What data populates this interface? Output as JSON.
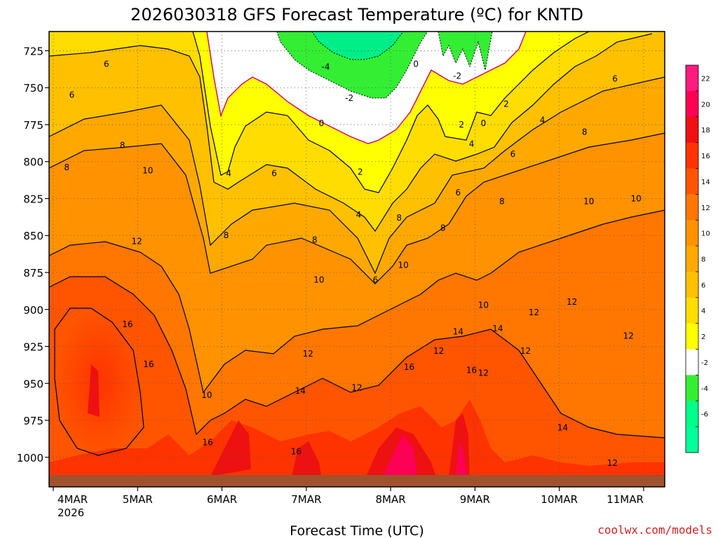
{
  "chart_data": {
    "type": "heatmap",
    "title": "2026030318 GFS Forecast Temperature (ºC) for KNTD",
    "xlabel": "Forecast Time (UTC)",
    "ylabel": "",
    "credit": "coolwx.com/models",
    "x_ticks": [
      "4MAR",
      "5MAR",
      "6MAR",
      "7MAR",
      "8MAR",
      "9MAR",
      "10MAR",
      "11MAR"
    ],
    "x_tick_sub": "2026",
    "y_ticks": [
      725,
      750,
      775,
      800,
      825,
      850,
      875,
      900,
      925,
      950,
      975,
      1000
    ],
    "ylim": [
      1020,
      712
    ],
    "xlim_days": [
      -0.05,
      7.25
    ],
    "colorbar": {
      "labels": [
        22,
        20,
        18,
        16,
        14,
        12,
        10,
        8,
        6,
        4,
        2,
        -2,
        -4,
        -6
      ],
      "colors": [
        "#ff1a80",
        "#ff0055",
        "#ee1111",
        "#ff3300",
        "#ff5500",
        "#ff7700",
        "#ff9200",
        "#ffa900",
        "#ffc000",
        "#ffdd00",
        "#ffff00",
        "#ffffff",
        "#33ee33",
        "#00ff88",
        "#00ff99"
      ]
    },
    "contour_labels": [
      {
        "v": "6",
        "d": 0.63,
        "p": 734
      },
      {
        "v": "6",
        "d": 0.22,
        "p": 755
      },
      {
        "v": "8",
        "d": 0.82,
        "p": 789
      },
      {
        "v": "8",
        "d": 0.16,
        "p": 804
      },
      {
        "v": "10",
        "d": 1.12,
        "p": 806
      },
      {
        "v": "4",
        "d": 2.08,
        "p": 808
      },
      {
        "v": "6",
        "d": 2.62,
        "p": 808
      },
      {
        "v": "8",
        "d": 2.05,
        "p": 850
      },
      {
        "v": "12",
        "d": 0.99,
        "p": 854
      },
      {
        "v": "8",
        "d": 3.1,
        "p": 853
      },
      {
        "v": "10",
        "d": 3.15,
        "p": 880
      },
      {
        "v": "16",
        "d": 0.88,
        "p": 910
      },
      {
        "v": "16",
        "d": 1.13,
        "p": 937
      },
      {
        "v": "12",
        "d": 3.02,
        "p": 930
      },
      {
        "v": "10",
        "d": 1.82,
        "p": 958
      },
      {
        "v": "14",
        "d": 2.93,
        "p": 955
      },
      {
        "v": "12",
        "d": 3.6,
        "p": 953
      },
      {
        "v": "16",
        "d": 1.83,
        "p": 990
      },
      {
        "v": "16",
        "d": 2.88,
        "p": 996
      },
      {
        "v": "0",
        "d": 3.18,
        "p": 774
      },
      {
        "v": "-4",
        "d": 3.23,
        "p": 736
      },
      {
        "v": "-2",
        "d": 3.51,
        "p": 757
      },
      {
        "v": "2",
        "d": 3.64,
        "p": 807
      },
      {
        "v": "4",
        "d": 3.62,
        "p": 836
      },
      {
        "v": "6",
        "d": 3.82,
        "p": 880
      },
      {
        "v": "8",
        "d": 4.1,
        "p": 838
      },
      {
        "v": "10",
        "d": 4.15,
        "p": 870
      },
      {
        "v": "16",
        "d": 4.22,
        "p": 939
      },
      {
        "v": "12",
        "d": 4.57,
        "p": 928
      },
      {
        "v": "0",
        "d": 4.3,
        "p": 734
      },
      {
        "v": "-2",
        "d": 4.79,
        "p": 742
      },
      {
        "v": "2",
        "d": 4.84,
        "p": 775
      },
      {
        "v": "0",
        "d": 5.1,
        "p": 774
      },
      {
        "v": "4",
        "d": 4.96,
        "p": 788
      },
      {
        "v": "6",
        "d": 4.8,
        "p": 821
      },
      {
        "v": "6",
        "d": 5.45,
        "p": 795
      },
      {
        "v": "2",
        "d": 5.37,
        "p": 761
      },
      {
        "v": "4",
        "d": 5.8,
        "p": 772
      },
      {
        "v": "8",
        "d": 4.62,
        "p": 845
      },
      {
        "v": "8",
        "d": 5.32,
        "p": 827
      },
      {
        "v": "14",
        "d": 4.8,
        "p": 915
      },
      {
        "v": "10",
        "d": 5.1,
        "p": 897
      },
      {
        "v": "14",
        "d": 5.27,
        "p": 913
      },
      {
        "v": "12",
        "d": 5.1,
        "p": 943
      },
      {
        "v": "16",
        "d": 4.96,
        "p": 941
      },
      {
        "v": "12",
        "d": 5.7,
        "p": 902
      },
      {
        "v": "12",
        "d": 5.6,
        "p": 928
      },
      {
        "v": "12",
        "d": 6.15,
        "p": 895
      },
      {
        "v": "14",
        "d": 6.04,
        "p": 980
      },
      {
        "v": "12",
        "d": 6.63,
        "p": 1004
      },
      {
        "v": "8",
        "d": 6.3,
        "p": 780
      },
      {
        "v": "10",
        "d": 6.35,
        "p": 827
      },
      {
        "v": "10",
        "d": 6.91,
        "p": 825
      },
      {
        "v": "6",
        "d": 6.66,
        "p": 744
      },
      {
        "v": "12",
        "d": 6.82,
        "p": 918
      }
    ]
  }
}
